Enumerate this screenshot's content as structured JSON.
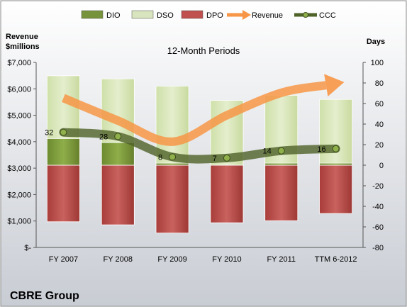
{
  "chart_data": {
    "type": "bar",
    "title": "12-Month Periods",
    "company": "CBRE Group",
    "left_axis_label": [
      "Revenue",
      "$millions"
    ],
    "right_axis_label": "Days",
    "categories": [
      "FY 2007",
      "FY 2008",
      "FY 2009",
      "FY 2010",
      "FY 2011",
      "TTM 6-2012"
    ],
    "left_ylim": [
      0,
      7000
    ],
    "left_ticks": [
      0,
      1000,
      2000,
      3000,
      4000,
      5000,
      6000,
      7000
    ],
    "left_tick_labels": [
      "$-",
      "$1,000",
      "$2,000",
      "$3,000",
      "$4,000",
      "$5,000",
      "$6,000",
      "$7,000"
    ],
    "right_ylim": [
      -80,
      100
    ],
    "right_ticks": [
      -80,
      -60,
      -40,
      -20,
      0,
      20,
      40,
      60,
      80,
      100
    ],
    "right_tick_labels": [
      "-80",
      "-60",
      "-40",
      "-20",
      "0",
      "20",
      "40",
      "60",
      "80",
      "100"
    ],
    "legend": [
      {
        "name": "DIO",
        "kind": "bar",
        "color": "#77933C"
      },
      {
        "name": "DSO",
        "kind": "bar",
        "color": "#D7E4BD"
      },
      {
        "name": "DPO",
        "kind": "bar",
        "color": "#C0504D"
      },
      {
        "name": "Revenue",
        "kind": "arrow",
        "color": "#F79646"
      },
      {
        "name": "CCC",
        "kind": "line",
        "color": "#4F6228"
      }
    ],
    "legend_position": "top",
    "series": [
      {
        "name": "DIO",
        "axis": "right",
        "values": [
          26,
          22,
          2,
          0,
          2,
          2
        ]
      },
      {
        "name": "DSO",
        "axis": "right",
        "values": [
          61,
          62,
          75,
          63,
          66,
          62
        ]
      },
      {
        "name": "DPO",
        "axis": "right",
        "values": [
          -55,
          -58,
          -66,
          -56,
          -54,
          -47
        ]
      },
      {
        "name": "CCC",
        "axis": "right",
        "values": [
          32,
          28,
          8,
          7,
          14,
          16
        ]
      },
      {
        "name": "Revenue",
        "axis": "left",
        "values": [
          5650,
          4800,
          4000,
          5000,
          5850,
          6200
        ]
      }
    ],
    "ccc_labels": [
      "32",
      "28",
      "8",
      "7",
      "14",
      "16"
    ],
    "grid": false
  }
}
